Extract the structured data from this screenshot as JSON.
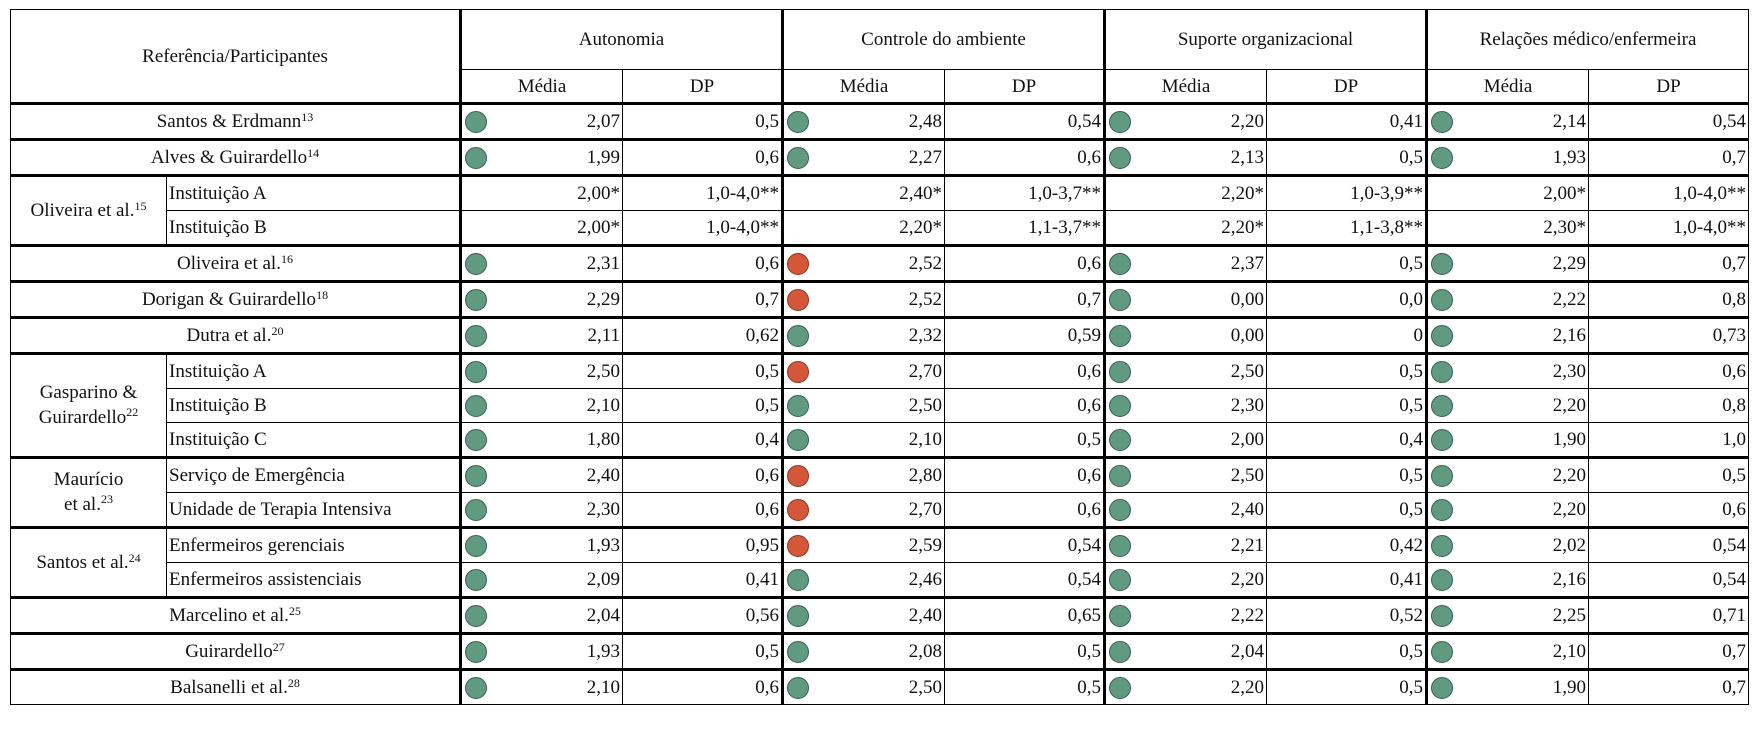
{
  "header": {
    "ref": "Referência/Participantes",
    "groups": [
      "Autonomia",
      "Controle do ambiente",
      "Suporte organizacional",
      "Relações médico/enfermeira"
    ],
    "media": "Média",
    "dp": "DP"
  },
  "colors": {
    "green": "#5f9a81",
    "red": "#d4573a"
  },
  "groups": [
    {
      "name": "Santos & Erdmann",
      "sup": "13",
      "rows": [
        {
          "sub": "",
          "cells": [
            {
              "m": "2,07",
              "dp": "0,5",
              "dot": "green"
            },
            {
              "m": "2,48",
              "dp": "0,54",
              "dot": "green"
            },
            {
              "m": "2,20",
              "dp": "0,41",
              "dot": "green"
            },
            {
              "m": "2,14",
              "dp": "0,54",
              "dot": "green"
            }
          ]
        }
      ]
    },
    {
      "name": "Alves & Guirardello",
      "sup": "14",
      "rows": [
        {
          "sub": "",
          "cells": [
            {
              "m": "1,99",
              "dp": "0,6",
              "dot": "green"
            },
            {
              "m": "2,27",
              "dp": "0,6",
              "dot": "green"
            },
            {
              "m": "2,13",
              "dp": "0,5",
              "dot": "green"
            },
            {
              "m": "1,93",
              "dp": "0,7",
              "dot": "green"
            }
          ]
        }
      ]
    },
    {
      "name": "Oliveira et al.",
      "sup": "15",
      "rows": [
        {
          "sub": "Instituição A",
          "cells": [
            {
              "m": "2,00*",
              "dp": "1,0-4,0**",
              "dot": ""
            },
            {
              "m": "2,40*",
              "dp": "1,0-3,7**",
              "dot": ""
            },
            {
              "m": "2,20*",
              "dp": "1,0-3,9**",
              "dot": ""
            },
            {
              "m": "2,00*",
              "dp": "1,0-4,0**",
              "dot": ""
            }
          ]
        },
        {
          "sub": "Instituição B",
          "cells": [
            {
              "m": "2,00*",
              "dp": "1,0-4,0**",
              "dot": ""
            },
            {
              "m": "2,20*",
              "dp": "1,1-3,7**",
              "dot": ""
            },
            {
              "m": "2,20*",
              "dp": "1,1-3,8**",
              "dot": ""
            },
            {
              "m": "2,30*",
              "dp": "1,0-4,0**",
              "dot": ""
            }
          ]
        }
      ]
    },
    {
      "name": "Oliveira et al.",
      "sup": "16",
      "rows": [
        {
          "sub": "",
          "cells": [
            {
              "m": "2,31",
              "dp": "0,6",
              "dot": "green"
            },
            {
              "m": "2,52",
              "dp": "0,6",
              "dot": "red"
            },
            {
              "m": "2,37",
              "dp": "0,5",
              "dot": "green"
            },
            {
              "m": "2,29",
              "dp": "0,7",
              "dot": "green"
            }
          ]
        }
      ]
    },
    {
      "name": "Dorigan & Guirardello",
      "sup": "18",
      "rows": [
        {
          "sub": "",
          "cells": [
            {
              "m": "2,29",
              "dp": "0,7",
              "dot": "green"
            },
            {
              "m": "2,52",
              "dp": "0,7",
              "dot": "red"
            },
            {
              "m": "0,00",
              "dp": "0,0",
              "dot": "green"
            },
            {
              "m": "2,22",
              "dp": "0,8",
              "dot": "green"
            }
          ]
        }
      ]
    },
    {
      "name": "Dutra et al.",
      "sup": "20",
      "rows": [
        {
          "sub": "",
          "cells": [
            {
              "m": "2,11",
              "dp": "0,62",
              "dot": "green"
            },
            {
              "m": "2,32",
              "dp": "0,59",
              "dot": "green"
            },
            {
              "m": "0,00",
              "dp": "0",
              "dot": "green"
            },
            {
              "m": "2,16",
              "dp": "0,73",
              "dot": "green"
            }
          ]
        }
      ]
    },
    {
      "name": "Gasparino & Guirardello",
      "name2": "Guirardello",
      "name1": "Gasparino &",
      "sup": "22",
      "rows": [
        {
          "sub": "Instituição A",
          "cells": [
            {
              "m": "2,50",
              "dp": "0,5",
              "dot": "green"
            },
            {
              "m": "2,70",
              "dp": "0,6",
              "dot": "red"
            },
            {
              "m": "2,50",
              "dp": "0,5",
              "dot": "green"
            },
            {
              "m": "2,30",
              "dp": "0,6",
              "dot": "green"
            }
          ]
        },
        {
          "sub": "Instituição B",
          "cells": [
            {
              "m": "2,10",
              "dp": "0,5",
              "dot": "green"
            },
            {
              "m": "2,50",
              "dp": "0,6",
              "dot": "green"
            },
            {
              "m": "2,30",
              "dp": "0,5",
              "dot": "green"
            },
            {
              "m": "2,20",
              "dp": "0,8",
              "dot": "green"
            }
          ]
        },
        {
          "sub": "Instituição C",
          "cells": [
            {
              "m": "1,80",
              "dp": "0,4",
              "dot": "green"
            },
            {
              "m": "2,10",
              "dp": "0,5",
              "dot": "green"
            },
            {
              "m": "2,00",
              "dp": "0,4",
              "dot": "green"
            },
            {
              "m": "1,90",
              "dp": "1,0",
              "dot": "green"
            }
          ]
        }
      ]
    },
    {
      "name": "Maurício et al.",
      "name1": "Maurício",
      "name2": "et al.",
      "sup": "23",
      "rows": [
        {
          "sub": "Serviço de Emergência",
          "cells": [
            {
              "m": "2,40",
              "dp": "0,6",
              "dot": "green"
            },
            {
              "m": "2,80",
              "dp": "0,6",
              "dot": "red"
            },
            {
              "m": "2,50",
              "dp": "0,5",
              "dot": "green"
            },
            {
              "m": "2,20",
              "dp": "0,5",
              "dot": "green"
            }
          ]
        },
        {
          "sub": "Unidade de Terapia Intensiva",
          "cells": [
            {
              "m": "2,30",
              "dp": "0,6",
              "dot": "green"
            },
            {
              "m": "2,70",
              "dp": "0,6",
              "dot": "red"
            },
            {
              "m": "2,40",
              "dp": "0,5",
              "dot": "green"
            },
            {
              "m": "2,20",
              "dp": "0,6",
              "dot": "green"
            }
          ]
        }
      ]
    },
    {
      "name": "Santos et al.",
      "sup": "24",
      "rows": [
        {
          "sub": "Enfermeiros gerenciais",
          "cells": [
            {
              "m": "1,93",
              "dp": "0,95",
              "dot": "green"
            },
            {
              "m": "2,59",
              "dp": "0,54",
              "dot": "red"
            },
            {
              "m": "2,21",
              "dp": "0,42",
              "dot": "green"
            },
            {
              "m": "2,02",
              "dp": "0,54",
              "dot": "green"
            }
          ]
        },
        {
          "sub": "Enfermeiros assistenciais",
          "cells": [
            {
              "m": "2,09",
              "dp": "0,41",
              "dot": "green"
            },
            {
              "m": "2,46",
              "dp": "0,54",
              "dot": "green"
            },
            {
              "m": "2,20",
              "dp": "0,41",
              "dot": "green"
            },
            {
              "m": "2,16",
              "dp": "0,54",
              "dot": "green"
            }
          ]
        }
      ]
    },
    {
      "name": "Marcelino et al.",
      "sup": "25",
      "rows": [
        {
          "sub": "",
          "cells": [
            {
              "m": "2,04",
              "dp": "0,56",
              "dot": "green"
            },
            {
              "m": "2,40",
              "dp": "0,65",
              "dot": "green"
            },
            {
              "m": "2,22",
              "dp": "0,52",
              "dot": "green"
            },
            {
              "m": "2,25",
              "dp": "0,71",
              "dot": "green"
            }
          ]
        }
      ]
    },
    {
      "name": "Guirardello",
      "sup": "27",
      "rows": [
        {
          "sub": "",
          "cells": [
            {
              "m": "1,93",
              "dp": "0,5",
              "dot": "green"
            },
            {
              "m": "2,08",
              "dp": "0,5",
              "dot": "green"
            },
            {
              "m": "2,04",
              "dp": "0,5",
              "dot": "green"
            },
            {
              "m": "2,10",
              "dp": "0,7",
              "dot": "green"
            }
          ]
        }
      ]
    },
    {
      "name": "Balsanelli et al.",
      "sup": "28",
      "rows": [
        {
          "sub": "",
          "cells": [
            {
              "m": "2,10",
              "dp": "0,6",
              "dot": "green"
            },
            {
              "m": "2,50",
              "dp": "0,5",
              "dot": "green"
            },
            {
              "m": "2,20",
              "dp": "0,5",
              "dot": "green"
            },
            {
              "m": "1,90",
              "dp": "0,7",
              "dot": "green"
            }
          ]
        }
      ]
    }
  ]
}
